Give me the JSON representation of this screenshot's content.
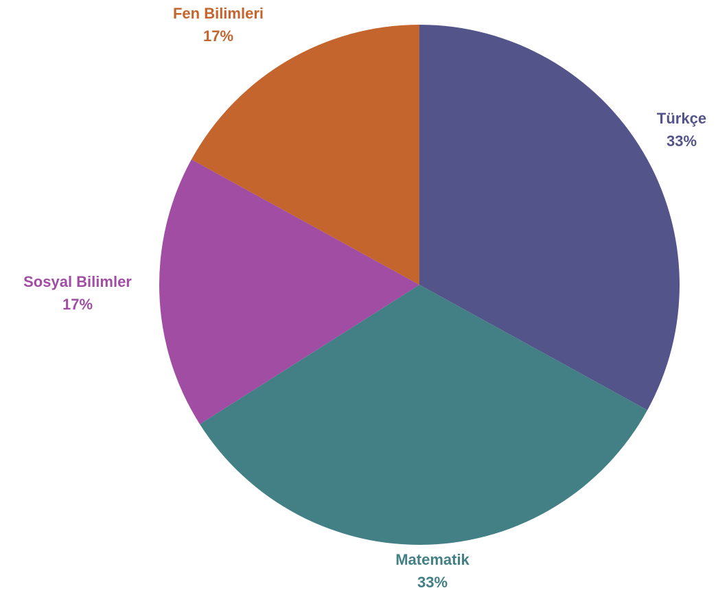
{
  "chart_data": {
    "type": "pie",
    "title": "",
    "start_angle_deg": 0,
    "direction": "clockwise",
    "slices": [
      {
        "label": "Türkçe",
        "value": 33,
        "percent_label": "33%",
        "color": "#53548A"
      },
      {
        "label": "Matematik",
        "value": 33,
        "percent_label": "33%",
        "color": "#438086"
      },
      {
        "label": "Sosyal Bilimler",
        "value": 17,
        "percent_label": "17%",
        "color": "#A04DA3"
      },
      {
        "label": "Fen Bilimleri",
        "value": 17,
        "percent_label": "17%",
        "color": "#C4652D"
      }
    ],
    "legend": "none",
    "data_labels": "outside"
  }
}
